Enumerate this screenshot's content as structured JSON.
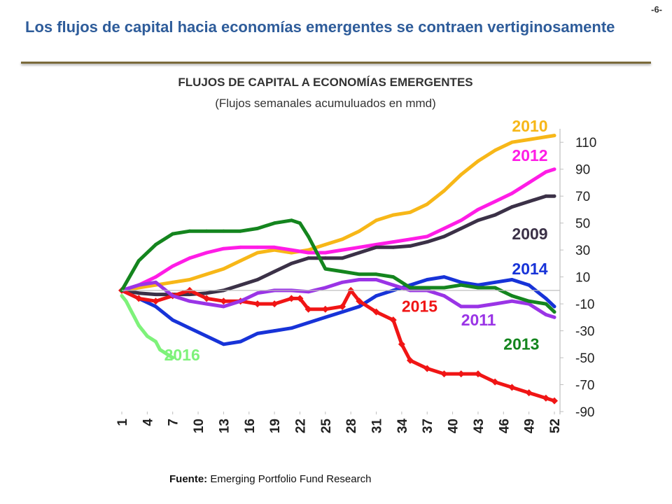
{
  "page_number": "-6-",
  "slide_title": "Los flujos de capital hacia economías emergentes se contraen vertiginosamente",
  "source": {
    "label": "Fuente:",
    "text": "Emerging Portfolio Fund Research"
  },
  "chart_data": {
    "type": "line",
    "title": "FLUJOS DE CAPITAL A ECONOMÍAS EMERGENTES",
    "subtitle": "(Flujos semanales acumuluados en mmd)",
    "xlabel": "",
    "ylabel": "",
    "x_ticks": [
      "1",
      "4",
      "7",
      "10",
      "13",
      "16",
      "19",
      "22",
      "25",
      "28",
      "31",
      "34",
      "37",
      "40",
      "43",
      "46",
      "49",
      "52"
    ],
    "y_ticks": [
      "110",
      "90",
      "70",
      "50",
      "30",
      "10",
      "-10",
      "-30",
      "-50",
      "-70",
      "-90"
    ],
    "xlim": [
      1,
      52
    ],
    "ylim": [
      -90,
      120
    ],
    "y_axis_side": "right",
    "grid": false,
    "series": [
      {
        "name": "2010",
        "color": "#f7b718",
        "x": [
          1,
          3,
          5,
          7,
          9,
          11,
          13,
          15,
          17,
          19,
          21,
          23,
          25,
          27,
          29,
          31,
          33,
          35,
          37,
          39,
          41,
          43,
          45,
          47,
          49,
          51,
          52
        ],
        "y": [
          0,
          2,
          4,
          6,
          8,
          12,
          16,
          22,
          28,
          30,
          28,
          30,
          34,
          38,
          44,
          52,
          56,
          58,
          64,
          74,
          86,
          96,
          104,
          110,
          112,
          114,
          115
        ]
      },
      {
        "name": "2012",
        "color": "#ff1ce6",
        "x": [
          1,
          3,
          5,
          7,
          9,
          11,
          13,
          15,
          17,
          19,
          21,
          23,
          25,
          27,
          29,
          31,
          33,
          35,
          37,
          39,
          41,
          43,
          45,
          47,
          49,
          51,
          52
        ],
        "y": [
          0,
          4,
          10,
          18,
          24,
          28,
          31,
          32,
          32,
          32,
          30,
          28,
          28,
          30,
          32,
          34,
          36,
          38,
          40,
          46,
          52,
          60,
          66,
          72,
          80,
          88,
          90
        ]
      },
      {
        "name": "2009",
        "color": "#3b3147",
        "x": [
          1,
          3,
          5,
          7,
          9,
          11,
          13,
          15,
          17,
          19,
          21,
          23,
          25,
          27,
          29,
          31,
          33,
          35,
          37,
          39,
          41,
          43,
          45,
          47,
          49,
          51,
          52
        ],
        "y": [
          0,
          -2,
          -3,
          -3,
          -3,
          -2,
          0,
          4,
          8,
          14,
          20,
          24,
          24,
          24,
          28,
          32,
          32,
          33,
          36,
          40,
          46,
          52,
          56,
          62,
          66,
          70,
          70
        ]
      },
      {
        "name": "2014",
        "color": "#1733d8",
        "x": [
          1,
          3,
          5,
          7,
          9,
          11,
          13,
          15,
          17,
          19,
          21,
          23,
          25,
          27,
          29,
          31,
          33,
          35,
          37,
          39,
          41,
          43,
          45,
          47,
          49,
          51,
          52
        ],
        "y": [
          0,
          -6,
          -12,
          -22,
          -28,
          -34,
          -40,
          -38,
          -32,
          -30,
          -28,
          -24,
          -20,
          -16,
          -12,
          -4,
          0,
          4,
          8,
          10,
          6,
          4,
          6,
          8,
          4,
          -6,
          -12
        ]
      },
      {
        "name": "2015",
        "color": "#f01515",
        "x": [
          1,
          3,
          5,
          7,
          9,
          11,
          13,
          15,
          17,
          19,
          21,
          22,
          23,
          25,
          27,
          28,
          29,
          31,
          33,
          34,
          35,
          37,
          39,
          41,
          43,
          45,
          47,
          49,
          51,
          52
        ],
        "y": [
          0,
          -6,
          -8,
          -4,
          0,
          -6,
          -8,
          -8,
          -10,
          -10,
          -6,
          -6,
          -14,
          -14,
          -12,
          0,
          -8,
          -16,
          -22,
          -40,
          -52,
          -58,
          -62,
          -62,
          -62,
          -68,
          -72,
          -76,
          -80,
          -82
        ]
      },
      {
        "name": "2011",
        "color": "#9a34e6",
        "x": [
          1,
          3,
          5,
          7,
          9,
          11,
          13,
          15,
          17,
          19,
          21,
          23,
          25,
          27,
          29,
          31,
          33,
          35,
          37,
          39,
          41,
          43,
          45,
          47,
          49,
          51,
          52
        ],
        "y": [
          0,
          4,
          6,
          -4,
          -8,
          -10,
          -12,
          -8,
          -2,
          0,
          0,
          -1,
          2,
          6,
          8,
          8,
          4,
          0,
          0,
          -4,
          -12,
          -12,
          -10,
          -8,
          -10,
          -18,
          -20
        ]
      },
      {
        "name": "2013",
        "color": "#14851e",
        "x": [
          1,
          3,
          5,
          7,
          9,
          11,
          13,
          15,
          17,
          19,
          21,
          22,
          23,
          25,
          27,
          29,
          31,
          33,
          35,
          37,
          39,
          41,
          43,
          45,
          47,
          49,
          51,
          52
        ],
        "y": [
          0,
          22,
          34,
          42,
          44,
          44,
          44,
          44,
          46,
          50,
          52,
          50,
          40,
          16,
          14,
          12,
          12,
          10,
          2,
          2,
          2,
          4,
          2,
          2,
          -4,
          -8,
          -10,
          -16
        ]
      },
      {
        "name": "2016",
        "color": "#7ef27a",
        "x": [
          1,
          1.5,
          2,
          2.5,
          3,
          3.5,
          4,
          4.5,
          5,
          5.5,
          6,
          6.5,
          7
        ],
        "y": [
          -4,
          -8,
          -14,
          -20,
          -26,
          -30,
          -34,
          -36,
          -38,
          -44,
          -46,
          -48,
          -50
        ]
      }
    ],
    "labels": [
      {
        "series": "2010",
        "text": "2010",
        "x": 47,
        "y": 118,
        "color": "#f7b718"
      },
      {
        "series": "2012",
        "text": "2012",
        "x": 47,
        "y": 96,
        "color": "#ff1ce6"
      },
      {
        "series": "2009",
        "text": "2009",
        "x": 47,
        "y": 38,
        "color": "#3b3147"
      },
      {
        "series": "2014",
        "text": "2014",
        "x": 47,
        "y": 12,
        "color": "#1733d8"
      },
      {
        "series": "2015",
        "text": "2015",
        "x": 34,
        "y": -16,
        "color": "#f01515"
      },
      {
        "series": "2011",
        "text": "2011",
        "x": 41,
        "y": -26,
        "color": "#9a34e6"
      },
      {
        "series": "2013",
        "text": "2013",
        "x": 46,
        "y": -44,
        "color": "#14851e"
      },
      {
        "series": "2016",
        "text": "2016",
        "x": 6,
        "y": -52,
        "color": "#7ef27a"
      }
    ]
  }
}
